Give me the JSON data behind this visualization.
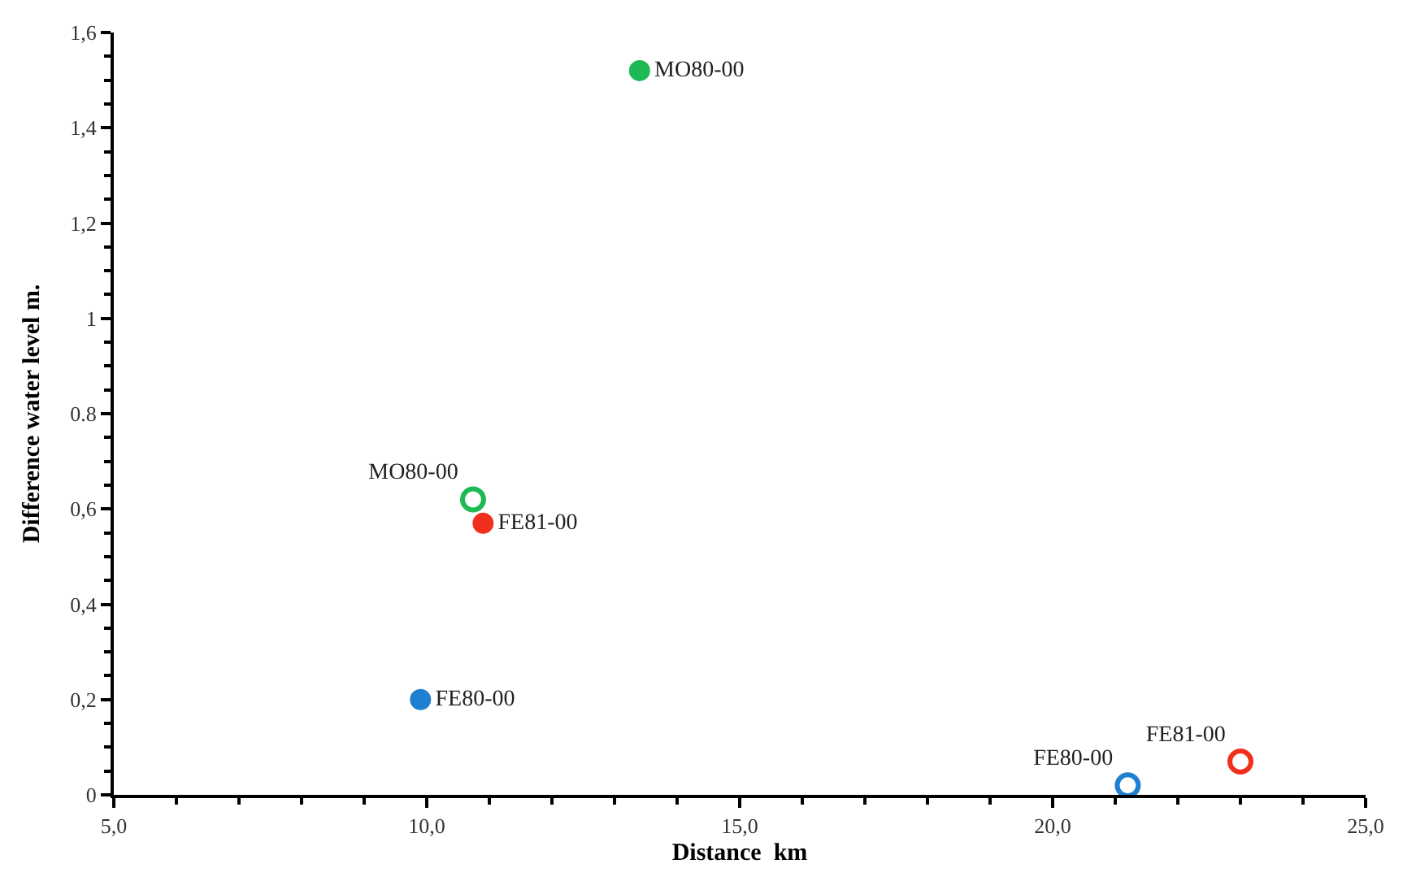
{
  "chart_data": {
    "type": "scatter",
    "xlabel": "Distance  km",
    "ylabel": "Difference water level m.",
    "xlim": [
      5,
      25
    ],
    "ylim": [
      0,
      1.6
    ],
    "xticks": [
      {
        "value": 5,
        "label": "5,0"
      },
      {
        "value": 10,
        "label": "10,0"
      },
      {
        "value": 15,
        "label": "15,0"
      },
      {
        "value": 20,
        "label": "20,0"
      },
      {
        "value": 25,
        "label": "25,0"
      }
    ],
    "yticks": [
      0,
      {
        "value": 0.2,
        "label": "0,2"
      },
      {
        "value": 0.4,
        "label": "0,4"
      },
      {
        "value": 0.6,
        "label": "0,6"
      },
      {
        "value": 0.8,
        "label": "0.8"
      },
      1,
      {
        "value": 1.2,
        "label": "1,2"
      },
      {
        "value": 1.4,
        "label": "1,4"
      },
      {
        "value": 1.6,
        "label": "1,6"
      }
    ],
    "legend": false,
    "series": [
      {
        "name": "MO80-00",
        "color": "#1db954",
        "marker": "circle",
        "x": [
          13.4
        ],
        "values": [
          1.52
        ]
      },
      {
        "name": "MO80-00",
        "color": "#1db954",
        "marker": "circle-open",
        "x": [
          10.74
        ],
        "values": [
          0.62
        ]
      },
      {
        "name": "FE81-00",
        "color": "#f0301c",
        "marker": "circle",
        "x": [
          10.9
        ],
        "values": [
          0.57
        ]
      },
      {
        "name": "FE80-00",
        "color": "#1f7fd0",
        "marker": "circle",
        "x": [
          9.9
        ],
        "values": [
          0.2
        ]
      },
      {
        "name": "FE80-00",
        "color": "#1f7fd0",
        "marker": "circle-open",
        "x": [
          21.2
        ],
        "values": [
          0.02
        ]
      },
      {
        "name": "FE81-00",
        "color": "#f0301c",
        "marker": "circle-open",
        "x": [
          23.0
        ],
        "values": [
          0.07
        ]
      }
    ]
  }
}
